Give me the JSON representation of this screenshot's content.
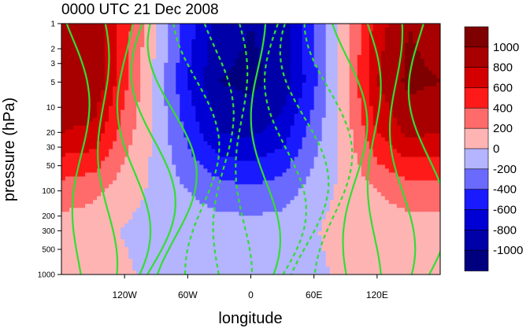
{
  "chart_data": {
    "type": "heatmap",
    "title": "0000 UTC 21 Dec 2008",
    "xlabel": "longitude",
    "ylabel": "pressure (hPa)",
    "xlim": [
      -180,
      180
    ],
    "ylim": [
      1000,
      1
    ],
    "y_scale": "log",
    "x_ticks": [
      {
        "value": -120,
        "label": "120W"
      },
      {
        "value": -60,
        "label": "60W"
      },
      {
        "value": 0,
        "label": "0"
      },
      {
        "value": 60,
        "label": "60E"
      },
      {
        "value": 120,
        "label": "120E"
      }
    ],
    "y_ticks": [
      1,
      2,
      3,
      5,
      10,
      20,
      30,
      50,
      100,
      200,
      300,
      500,
      1000
    ],
    "colorbar": {
      "labels": [
        1000,
        800,
        600,
        400,
        200,
        0,
        -200,
        -400,
        -600,
        -800,
        -1000
      ],
      "colors": [
        "#7f0000",
        "#a80000",
        "#d40000",
        "#ff1a1a",
        "#ff6a6a",
        "#ffb4b4",
        "#b4b4ff",
        "#6a6aff",
        "#1a1aff",
        "#0000d4",
        "#0000a8",
        "#00007f"
      ]
    },
    "field": {
      "description_units": "filled shading",
      "values_grid": {
        "longitudes": [
          -180,
          -150,
          -120,
          -90,
          -60,
          -30,
          0,
          30,
          60,
          90,
          120,
          150,
          180
        ],
        "pressures": [
          1,
          5,
          20,
          100,
          300,
          1000
        ],
        "values": [
          [
            900,
            950,
            500,
            0,
            -500,
            -900,
            -1000,
            -900,
            -400,
            100,
            700,
            1000,
            900
          ],
          [
            1000,
            1000,
            450,
            -50,
            -600,
            -1000,
            -1050,
            -950,
            -450,
            150,
            800,
            1050,
            1000
          ],
          [
            800,
            750,
            300,
            -50,
            -450,
            -800,
            -850,
            -700,
            -300,
            100,
            600,
            850,
            800
          ],
          [
            300,
            250,
            100,
            -50,
            -200,
            -300,
            -350,
            -300,
            -100,
            50,
            200,
            300,
            300
          ],
          [
            100,
            100,
            -20,
            -100,
            -100,
            -100,
            -100,
            -100,
            -20,
            100,
            100,
            100,
            100
          ],
          [
            150,
            150,
            50,
            -100,
            -150,
            -150,
            -150,
            -150,
            -50,
            50,
            150,
            150,
            150
          ]
        ]
      },
      "overlay": "green contour lines, solid for positive and dashed for negative"
    }
  }
}
